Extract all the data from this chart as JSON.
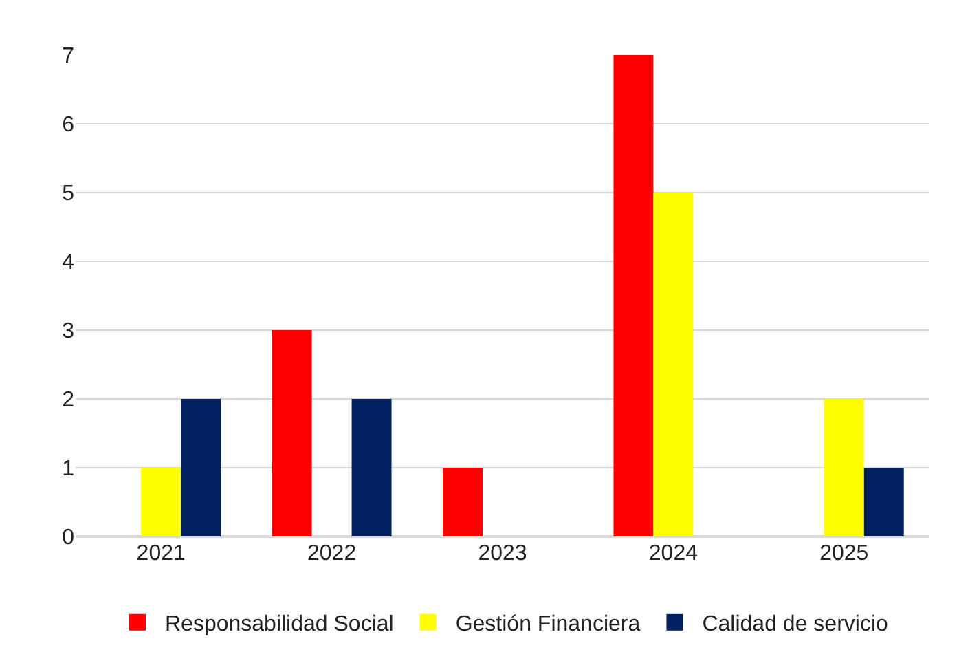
{
  "chart_data": {
    "type": "bar",
    "categories": [
      "2021",
      "2022",
      "2023",
      "2024",
      "2025"
    ],
    "series": [
      {
        "name": "Responsabilidad Social",
        "color": "#ff0000",
        "values": [
          0,
          3,
          1,
          7,
          0
        ]
      },
      {
        "name": "Gestión Financiera",
        "color": "#ffff00",
        "values": [
          1,
          0,
          0,
          5,
          2
        ]
      },
      {
        "name": "Calidad de servicio",
        "color": "#002060",
        "values": [
          2,
          2,
          0,
          0,
          1
        ]
      }
    ],
    "ylim": [
      0,
      7
    ],
    "yticks": [
      0,
      1,
      2,
      3,
      4,
      5,
      6,
      7
    ],
    "grid": "y",
    "legend": "bottom"
  }
}
